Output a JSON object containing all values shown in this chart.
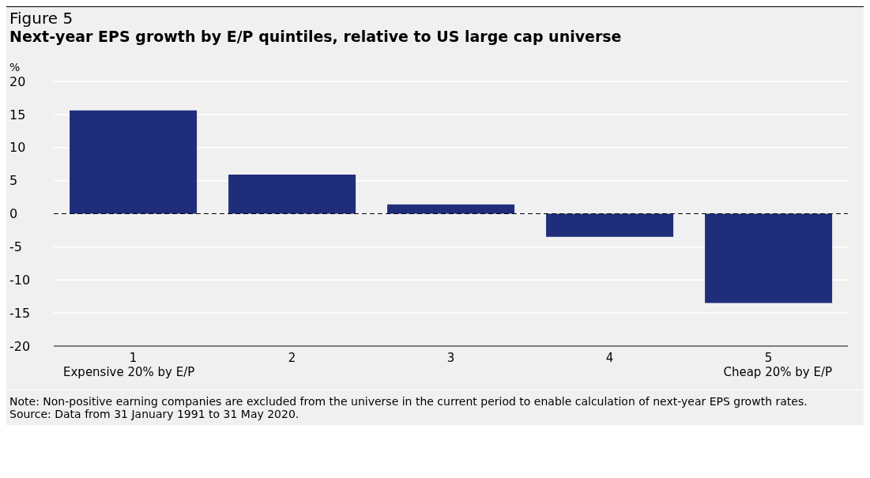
{
  "chart_data": {
    "type": "bar",
    "title": "Figure 5",
    "subtitle": "Next-year EPS growth by E/P quintiles, relative to US large cap universe",
    "ylabel": "%",
    "categories": [
      "1\nExpensive 20% by E/P",
      "2",
      "3",
      "4",
      "5\nCheap 20% by E/P"
    ],
    "values": [
      15.6,
      5.9,
      1.4,
      -3.5,
      -13.5
    ],
    "color": "#1f2d7a",
    "ylim": [
      -20,
      20
    ],
    "yticks": [
      -20,
      -15,
      -10,
      -5,
      0,
      5,
      10,
      15,
      20
    ],
    "grid": "y",
    "ref_lines": [
      {
        "axis": "y",
        "value": 0,
        "color": "#000000",
        "line_style": "dashed"
      }
    ],
    "annotations": [
      "Note: Non-positive earning companies are excluded from the universe in the current period to enable calculation of next-year EPS growth rates.",
      "Source: Data from 31 January 1991 to 31 May 2020."
    ]
  }
}
